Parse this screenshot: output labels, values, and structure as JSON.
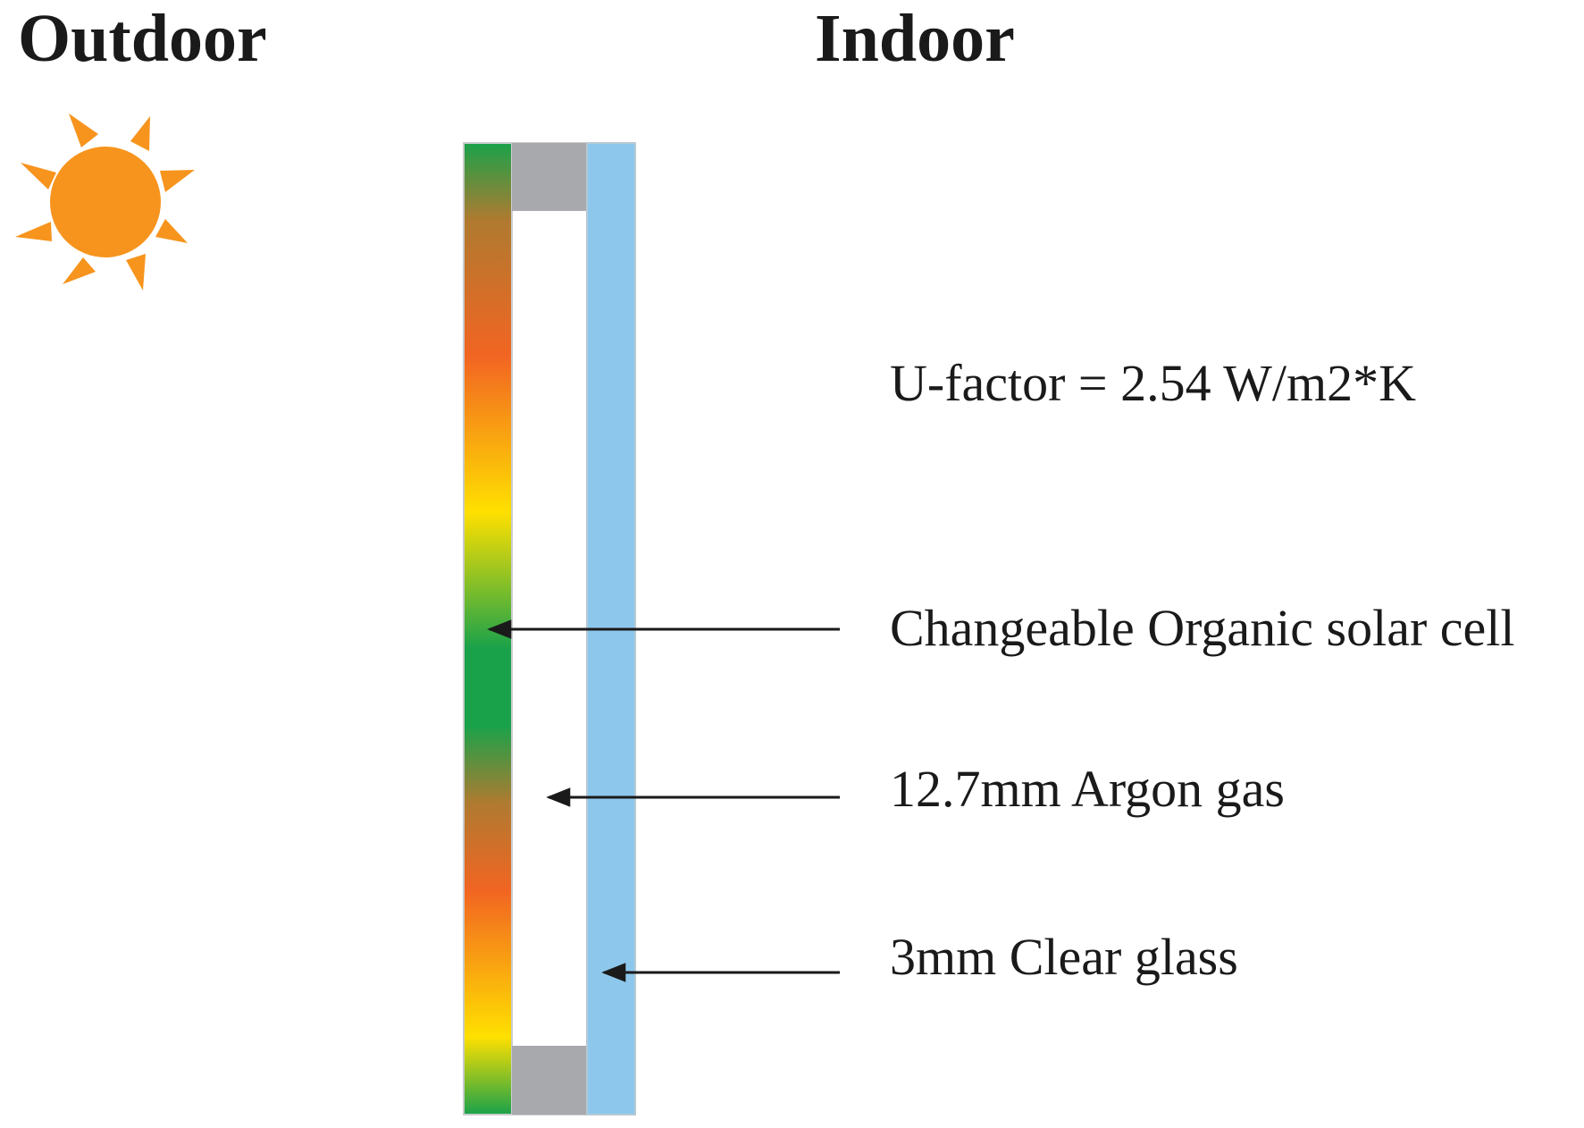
{
  "headings": {
    "outdoor": "Outdoor",
    "indoor": "Indoor"
  },
  "u_factor": "U-factor = 2.54 W/m2*K",
  "layers": [
    {
      "label": "Changeable Organic solar cell"
    },
    {
      "label": "12.7mm Argon gas"
    },
    {
      "label": "3mm Clear glass"
    }
  ],
  "icons": {
    "sun": "sun-icon"
  },
  "colors": {
    "sun": "#f7941d",
    "glass": "#8dc8ec",
    "spacer": "#a7a9ac",
    "cell_green": "#1aa24a",
    "cell_orange": "#f26522",
    "cell_yellow": "#ffe000",
    "arrow": "#1a1a1a",
    "text": "#1a1a1a"
  }
}
